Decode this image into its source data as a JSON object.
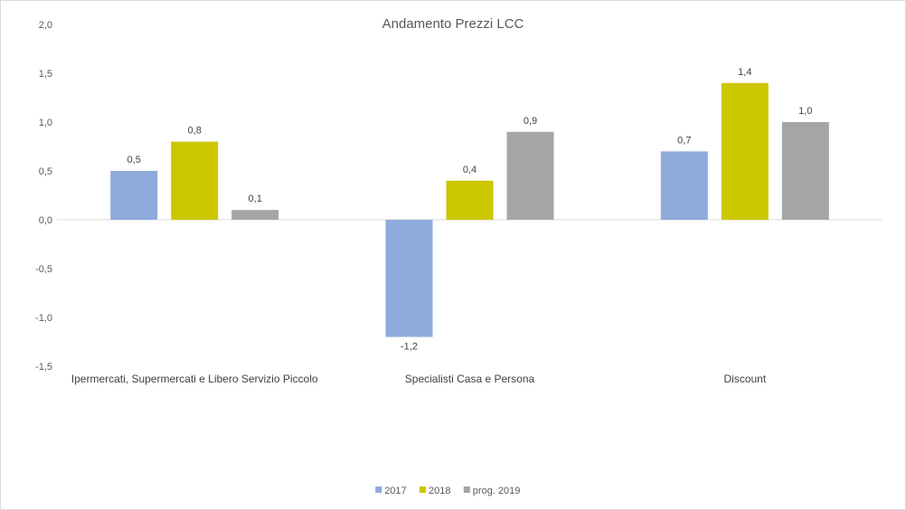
{
  "chart_data": {
    "type": "bar",
    "title": "Andamento Prezzi LCC",
    "categories": [
      "Ipermercati, Supermercati e Libero Servizio Piccolo",
      "Specialisti Casa e Persona",
      "Discount"
    ],
    "series": [
      {
        "name": "2017",
        "values": [
          0.5,
          -1.2,
          0.7
        ],
        "labels": [
          "0,5",
          "-1,2",
          "0,7"
        ],
        "color": "#8faadc"
      },
      {
        "name": "2018",
        "values": [
          0.8,
          0.4,
          1.4
        ],
        "labels": [
          "0,8",
          "0,4",
          "1,4"
        ],
        "color": "#cdc700"
      },
      {
        "name": "prog. 2019",
        "values": [
          0.1,
          0.9,
          1.0
        ],
        "labels": [
          "0,1",
          "0,9",
          "1,0"
        ],
        "color": "#a5a5a5"
      }
    ],
    "ylim": [
      -1.5,
      2.0
    ],
    "yticks": [
      2.0,
      1.5,
      1.0,
      0.5,
      0.0,
      -0.5,
      -1.0,
      -1.5
    ],
    "ytick_labels": [
      "2,0",
      "1,5",
      "1,0",
      "0,5",
      "0,0",
      "-0,5",
      "-1,0",
      "-1,5"
    ],
    "negative_label_color": "#ff0000",
    "grid": false,
    "legend_position": "bottom",
    "xlabel": "",
    "ylabel": ""
  }
}
